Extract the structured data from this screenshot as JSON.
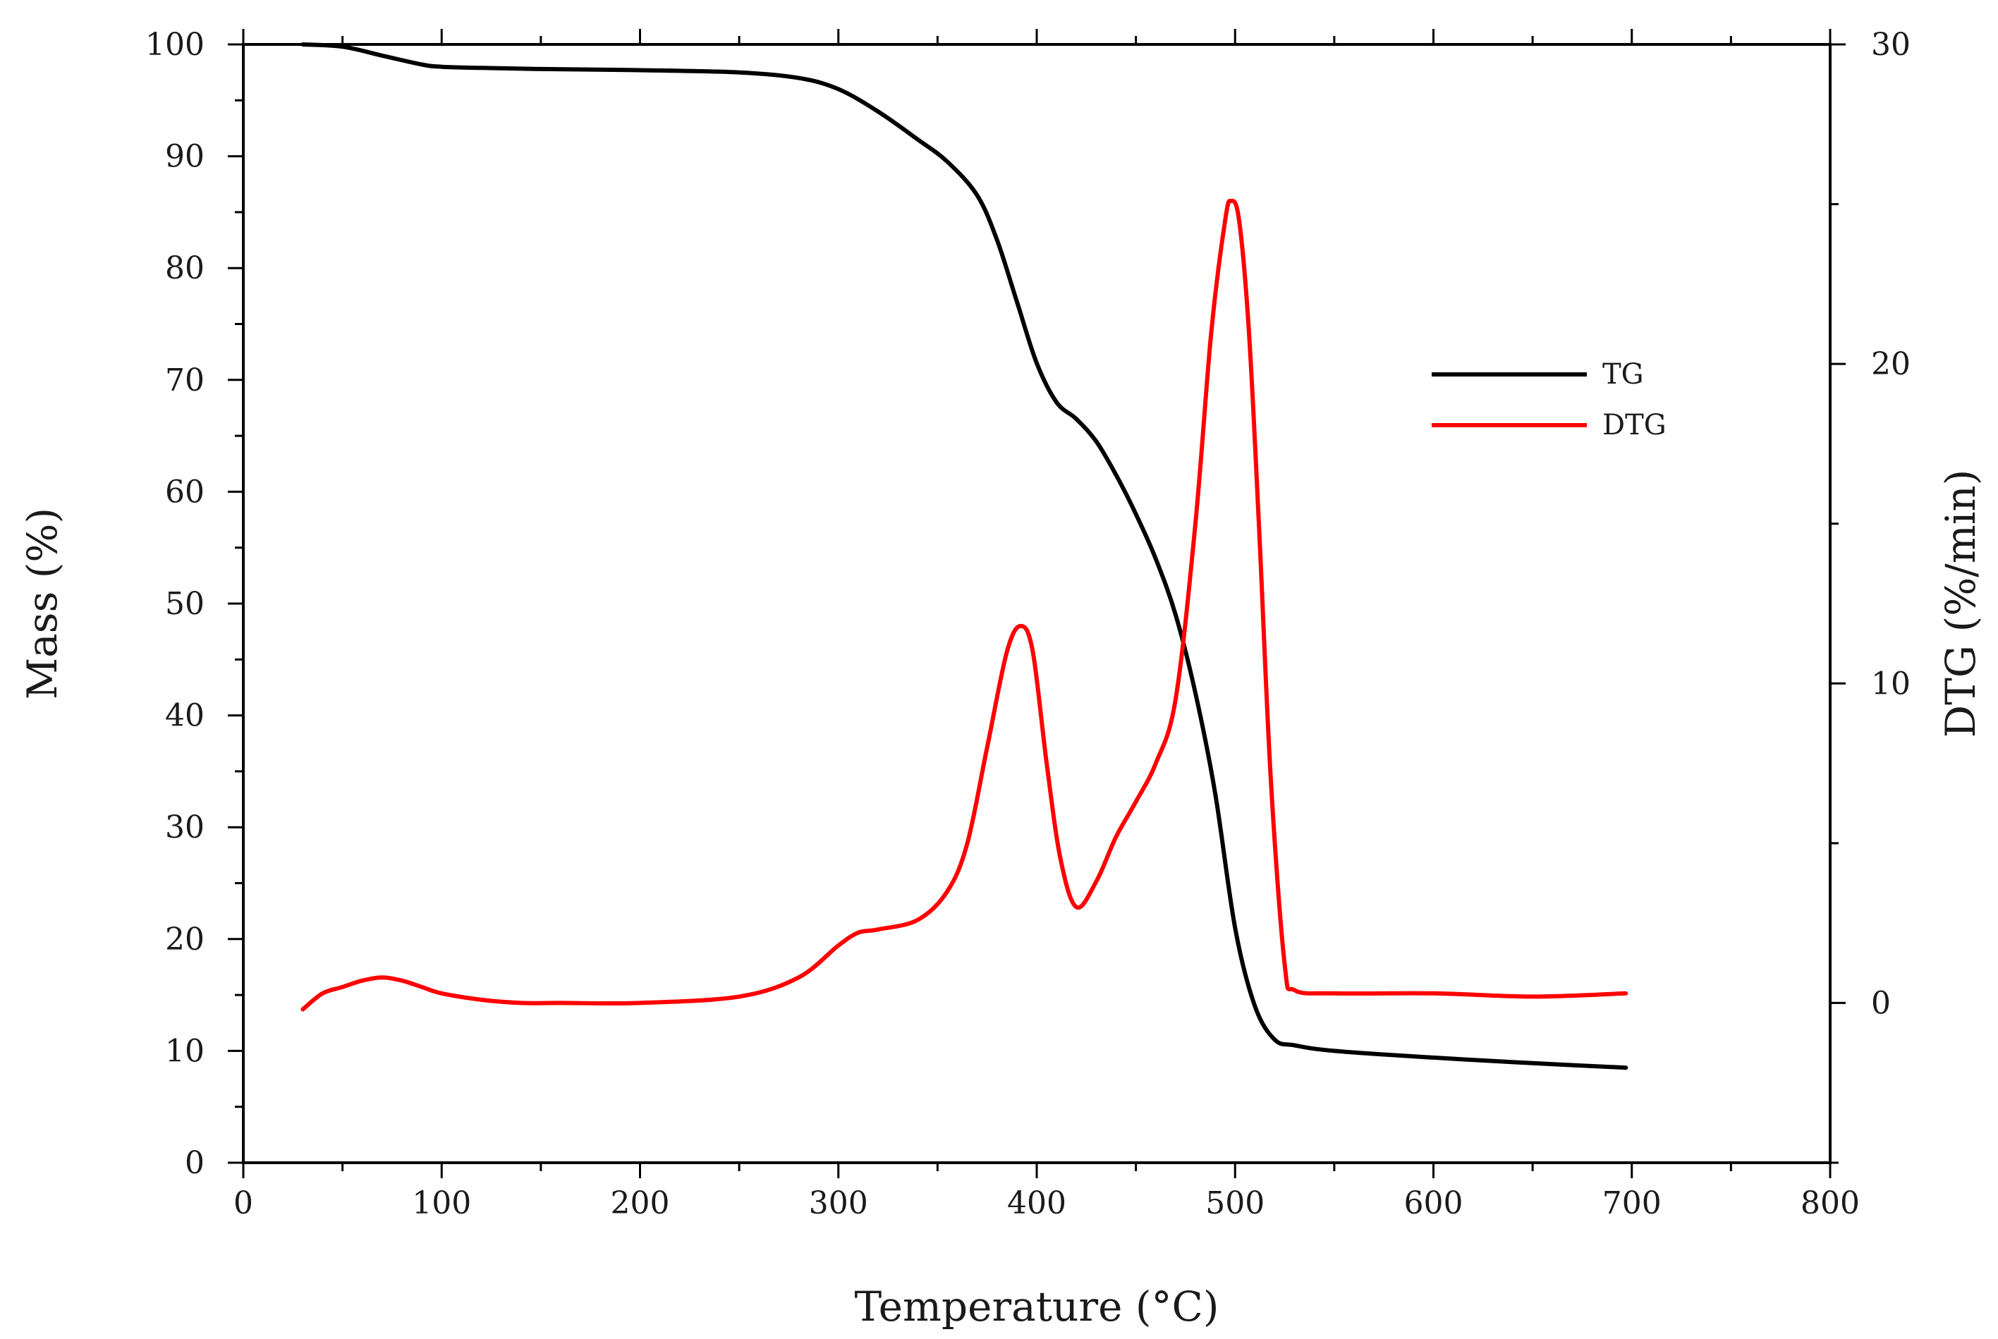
{
  "chart_data": {
    "type": "line",
    "title": "",
    "xlabel": "Temperature (°C)",
    "ylabel_left": "Mass (%)",
    "ylabel_right": "DTG (%/min)",
    "xlim": [
      0,
      800
    ],
    "ylim_left": [
      0,
      100
    ],
    "ylim_right": [
      -5,
      30
    ],
    "x_ticks": [
      0,
      100,
      200,
      300,
      400,
      500,
      600,
      700,
      800
    ],
    "y_left_ticks": [
      0,
      10,
      20,
      30,
      40,
      50,
      60,
      70,
      80,
      90,
      100
    ],
    "y_right_ticks": [
      0,
      10,
      20,
      30
    ],
    "grid": false,
    "legend_position": "center-right",
    "series": [
      {
        "name": "TG",
        "axis": "left",
        "color": "#000000",
        "x": [
          30,
          50,
          70,
          90,
          100,
          120,
          150,
          200,
          250,
          280,
          300,
          320,
          340,
          355,
          370,
          380,
          390,
          400,
          410,
          420,
          430,
          440,
          450,
          460,
          470,
          480,
          490,
          500,
          510,
          520,
          530,
          550,
          600,
          650,
          697
        ],
        "values": [
          100,
          99.8,
          99,
          98.2,
          98,
          97.9,
          97.8,
          97.7,
          97.5,
          97,
          96,
          94,
          91.5,
          89.5,
          86.5,
          82.5,
          77,
          71.5,
          68,
          66.5,
          64.5,
          61.5,
          58,
          54,
          49,
          42,
          33,
          21,
          14,
          11,
          10.5,
          10,
          9.4,
          8.9,
          8.5
        ]
      },
      {
        "name": "DTG",
        "axis": "right",
        "color": "#ff0000",
        "x": [
          30,
          40,
          50,
          60,
          70,
          80,
          90,
          100,
          120,
          140,
          160,
          200,
          250,
          280,
          300,
          310,
          320,
          340,
          355,
          365,
          375,
          385,
          392,
          398,
          405,
          412,
          420,
          430,
          440,
          450,
          460,
          470,
          480,
          488,
          495,
          498,
          502,
          507,
          512,
          518,
          525,
          530,
          550,
          600,
          650,
          697
        ],
        "values": [
          -0.2,
          0.3,
          0.5,
          0.7,
          0.8,
          0.7,
          0.5,
          0.3,
          0.1,
          0,
          0,
          0,
          0.2,
          0.8,
          1.8,
          2.2,
          2.3,
          2.6,
          3.5,
          5,
          8,
          11,
          11.8,
          11,
          7.5,
          4.5,
          3,
          3.8,
          5.2,
          6.3,
          7.5,
          9.5,
          15,
          21,
          24.5,
          25.1,
          24.5,
          21,
          15,
          7,
          1.2,
          0.4,
          0.3,
          0.3,
          0.2,
          0.3
        ]
      }
    ]
  }
}
